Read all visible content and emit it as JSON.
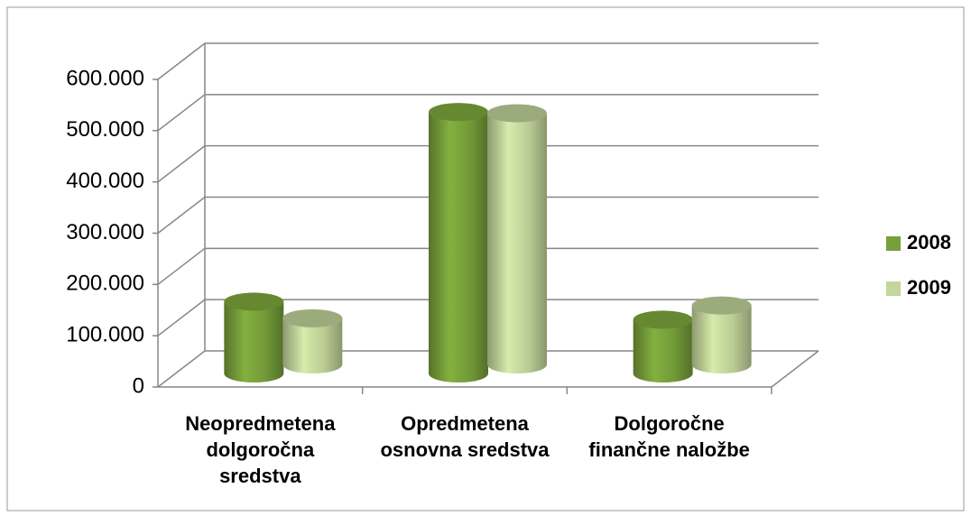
{
  "chart_data": {
    "type": "bar3d",
    "categories": [
      "Neopredmetena dolgoročna sredstva",
      "Opredmetena osnovna sredstva",
      "Dolgoročne finančne naložbe"
    ],
    "series": [
      {
        "name": "2008",
        "color": "#77a03a",
        "values": [
          140000,
          510000,
          105000
        ]
      },
      {
        "name": "2009",
        "color": "#c3d69b",
        "values": [
          90000,
          490000,
          115000
        ]
      }
    ],
    "ylim": [
      0,
      600000
    ],
    "yticks": [
      0,
      {
        "value": 100000,
        "label": "100.000"
      },
      {
        "value": 200000,
        "label": "200.000"
      },
      {
        "value": 300000,
        "label": "300.000"
      },
      {
        "value": 400000,
        "label": "400.000"
      },
      {
        "value": 500000,
        "label": "500.000"
      },
      {
        "value": 600000,
        "label": "600.000"
      }
    ],
    "grid": true,
    "legend": "right"
  }
}
